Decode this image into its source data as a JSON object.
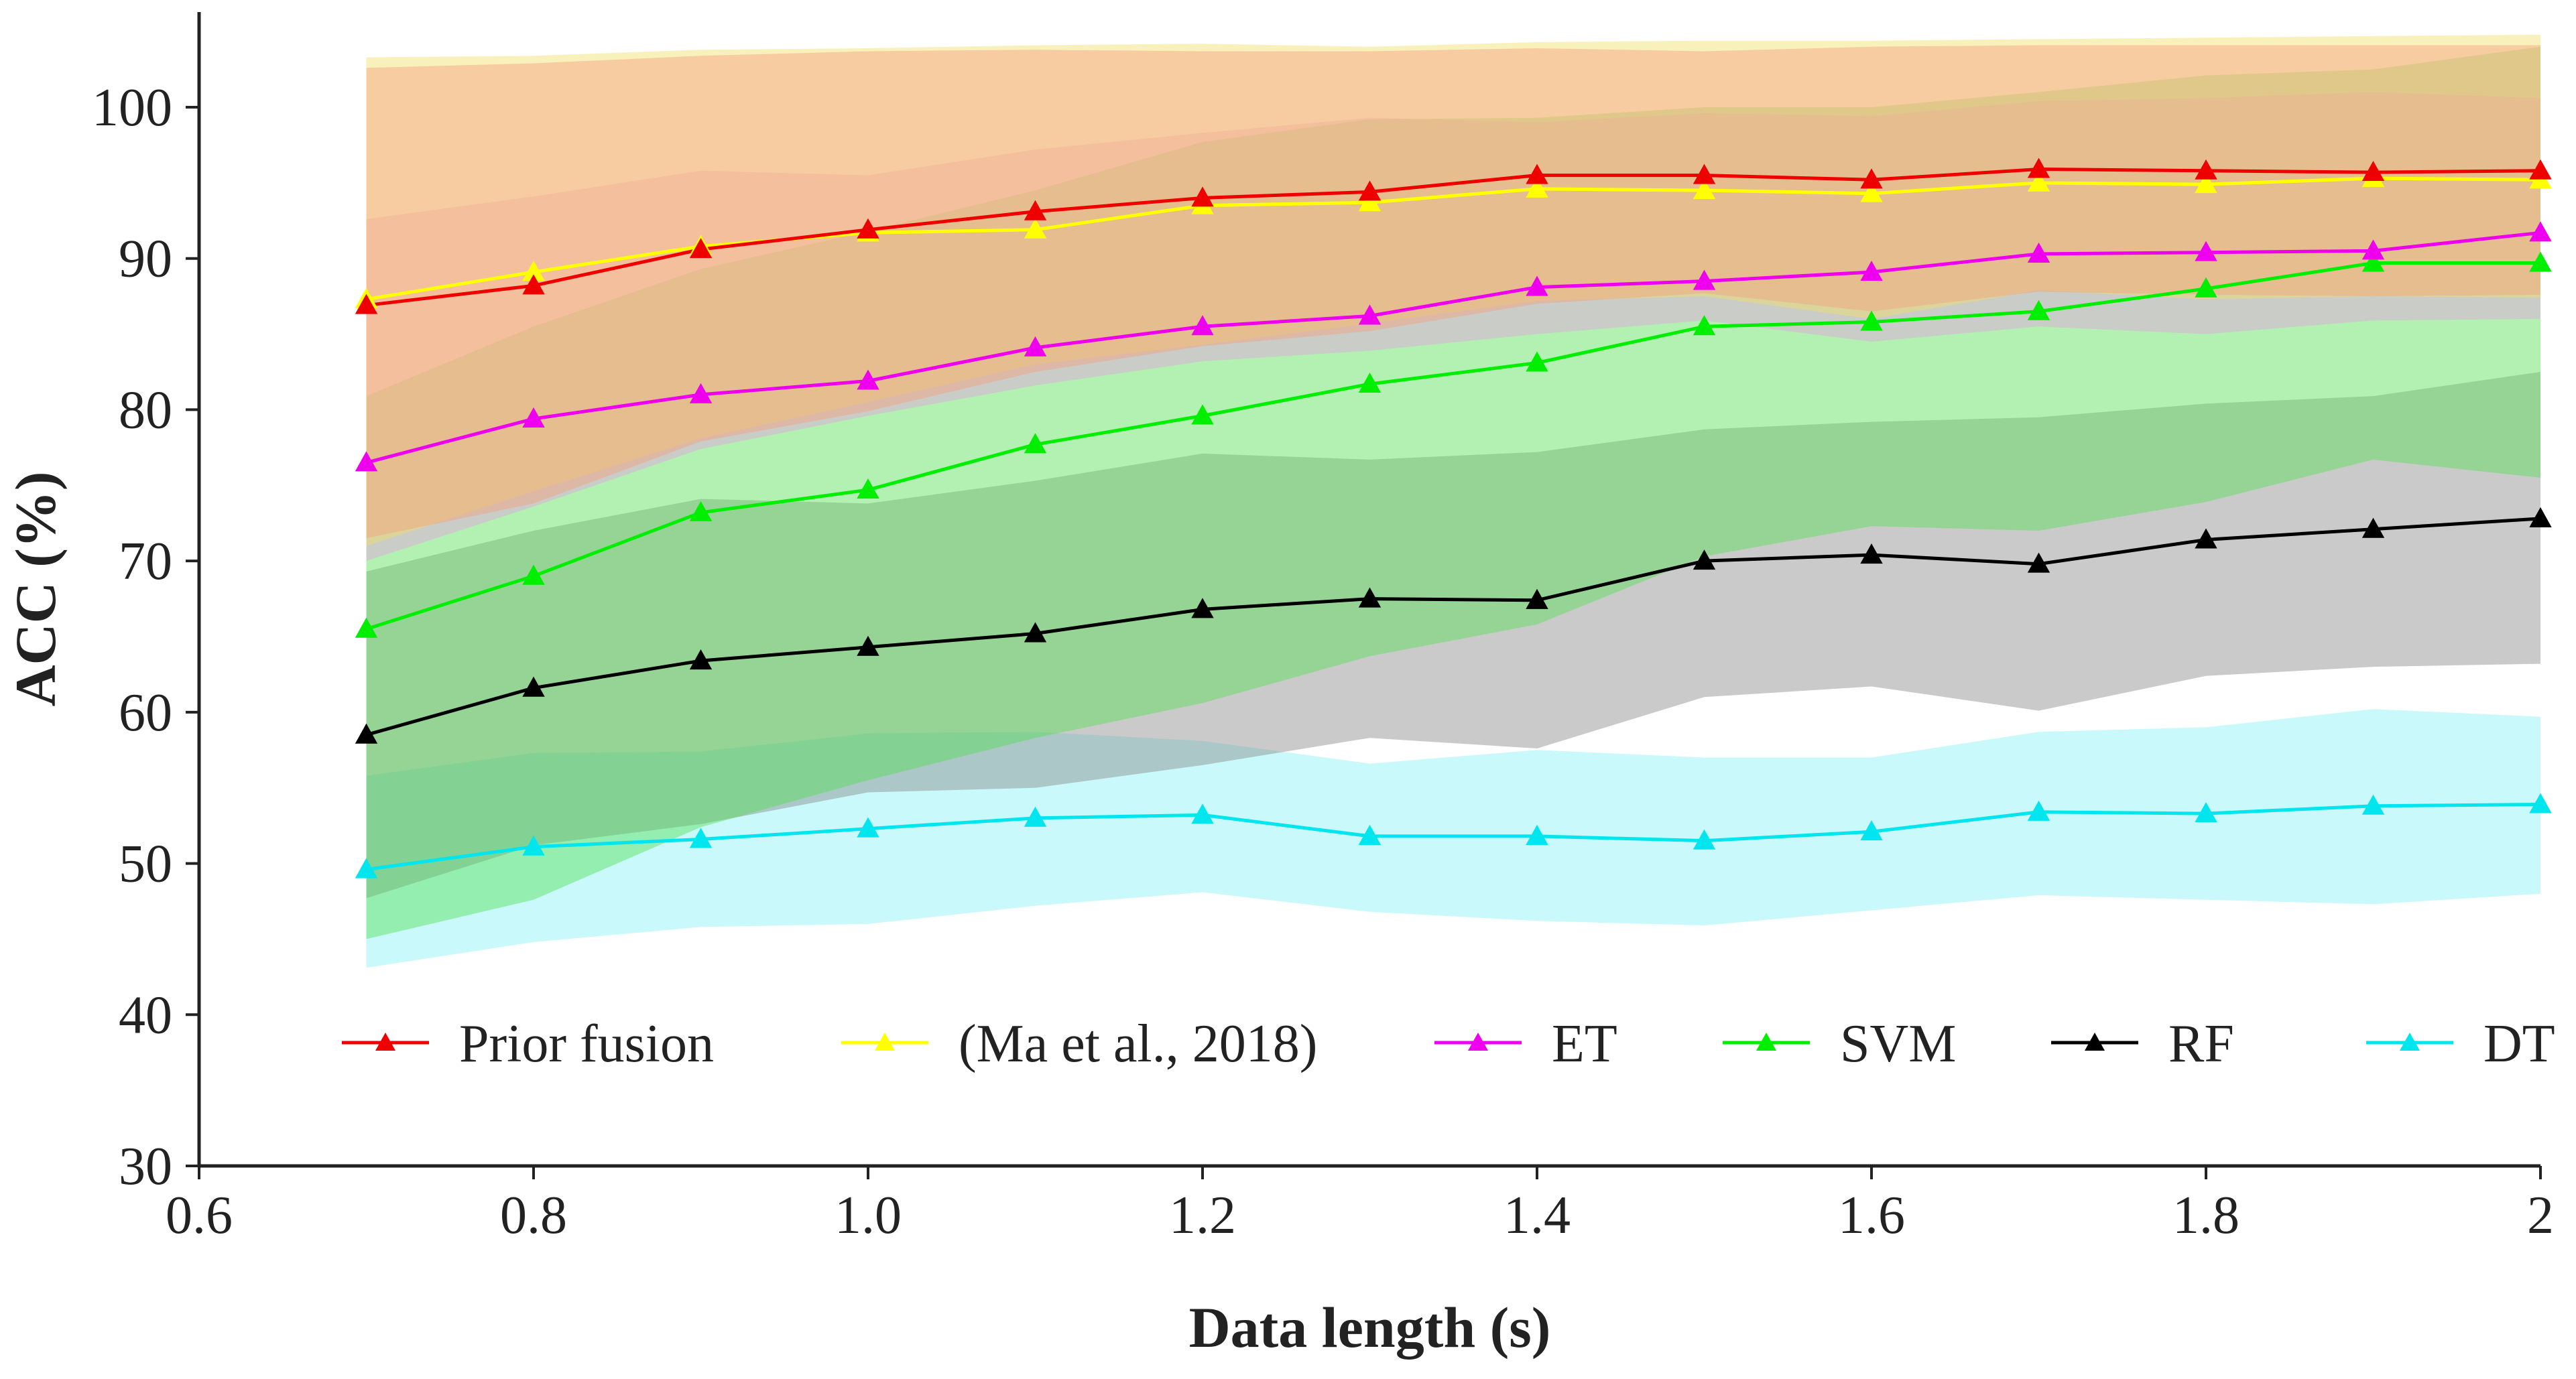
{
  "chart_data": {
    "type": "line",
    "title": "",
    "xlabel": "Data length (s)",
    "ylabel": "ACC (%)",
    "xlim": [
      0.6,
      2.0
    ],
    "ylim": [
      30,
      105
    ],
    "x_ticks": [
      0.6,
      0.8,
      1.0,
      1.2,
      1.4,
      1.6,
      1.8,
      2.0
    ],
    "x_tick_labels": [
      "0.6",
      "0.8",
      "1.0",
      "1.2",
      "1.4",
      "1.6",
      "1.8",
      "2"
    ],
    "y_ticks": [
      30,
      40,
      50,
      60,
      70,
      80,
      90,
      100
    ],
    "y_tick_labels": [
      "30",
      "40",
      "50",
      "60",
      "70",
      "80",
      "90",
      "100"
    ],
    "grid": false,
    "legend_position": "bottom",
    "x": [
      0.7,
      0.8,
      0.9,
      1.0,
      1.1,
      1.2,
      1.3,
      1.4,
      1.5,
      1.6,
      1.7,
      1.8,
      1.9,
      2.0
    ],
    "series": [
      {
        "name": "DT",
        "color": "#00e5ee",
        "band_color": "#88f2f4",
        "values": [
          49.6,
          51.1,
          51.6,
          52.3,
          53.0,
          53.2,
          51.8,
          51.8,
          51.5,
          52.1,
          53.4,
          53.3,
          53.8,
          53.9
        ],
        "upper": [
          55.8,
          57.3,
          57.4,
          58.6,
          58.7,
          58.1,
          56.6,
          57.5,
          57.0,
          57.0,
          58.7,
          59.0,
          60.2,
          59.7
        ],
        "lower": [
          43.1,
          44.8,
          45.8,
          46.0,
          47.2,
          48.1,
          46.8,
          46.2,
          45.9,
          46.9,
          47.9,
          47.6,
          47.3,
          48.0
        ]
      },
      {
        "name": "RF",
        "color": "#000000",
        "band_color": "#8a8a8a",
        "values": [
          58.5,
          61.6,
          63.4,
          64.3,
          65.2,
          66.8,
          67.5,
          67.4,
          70.0,
          70.4,
          69.8,
          71.4,
          72.1,
          72.8
        ],
        "upper": [
          69.3,
          72.0,
          74.1,
          73.8,
          75.3,
          77.1,
          76.7,
          77.2,
          78.7,
          79.2,
          79.5,
          80.4,
          80.9,
          82.5
        ],
        "lower": [
          47.7,
          51.2,
          52.6,
          54.7,
          55.0,
          56.5,
          58.3,
          57.6,
          61.0,
          61.7,
          60.1,
          62.4,
          63.0,
          63.2
        ]
      },
      {
        "name": "SVM",
        "color": "#00ee00",
        "band_color": "#55e055",
        "values": [
          65.5,
          69.0,
          73.2,
          74.7,
          77.7,
          79.6,
          81.7,
          83.1,
          85.5,
          85.8,
          86.5,
          88.0,
          89.7,
          89.7
        ],
        "upper": [
          80.9,
          85.5,
          89.3,
          91.8,
          94.5,
          97.7,
          99.2,
          99.3,
          100.0,
          100.0,
          101.0,
          102.1,
          102.5,
          104.0
        ],
        "lower": [
          45.0,
          47.6,
          52.4,
          55.5,
          58.3,
          60.6,
          63.7,
          65.8,
          70.3,
          72.3,
          72.0,
          73.9,
          76.7,
          75.5
        ]
      },
      {
        "name": "ET",
        "color": "#ee00ee",
        "band_color": "#e6a0e0",
        "values": [
          76.5,
          79.4,
          81.0,
          81.9,
          84.1,
          85.5,
          86.2,
          88.1,
          88.5,
          89.1,
          90.3,
          90.4,
          90.5,
          91.7
        ],
        "upper": [
          92.6,
          94.1,
          95.8,
          95.5,
          97.2,
          98.3,
          99.3,
          99.0,
          99.6,
          99.4,
          100.4,
          100.6,
          101.0,
          100.6
        ],
        "lower": [
          70.0,
          73.6,
          77.4,
          79.6,
          81.6,
          83.2,
          83.9,
          85.0,
          85.9,
          84.5,
          85.5,
          85.0,
          85.9,
          86.0
        ]
      },
      {
        "name": "(Ma et al., 2018)",
        "color": "#ffff00",
        "band_color": "#f0e068",
        "values": [
          87.3,
          89.1,
          90.8,
          91.7,
          91.9,
          93.5,
          93.7,
          94.6,
          94.5,
          94.3,
          95.0,
          94.9,
          95.3,
          95.2
        ],
        "upper": [
          103.3,
          103.4,
          103.8,
          103.9,
          104.1,
          104.2,
          104.0,
          104.3,
          104.4,
          104.4,
          104.5,
          104.6,
          104.7,
          104.8
        ],
        "lower": [
          71.0,
          74.6,
          78.1,
          80.5,
          83.0,
          84.3,
          85.7,
          87.2,
          87.5,
          86.0,
          87.9,
          87.3,
          87.5,
          87.4
        ]
      },
      {
        "name": "Prior fusion",
        "color": "#ee0000",
        "band_color": "#f4a080",
        "values": [
          86.9,
          88.2,
          90.6,
          91.9,
          93.1,
          94.0,
          94.4,
          95.5,
          95.5,
          95.2,
          95.9,
          95.8,
          95.7,
          95.8
        ],
        "upper": [
          102.6,
          102.9,
          103.4,
          103.7,
          103.8,
          103.7,
          103.7,
          103.9,
          103.7,
          104.0,
          104.1,
          104.1,
          104.1,
          104.1
        ],
        "lower": [
          71.5,
          73.8,
          77.9,
          79.9,
          82.5,
          84.2,
          85.2,
          87.0,
          87.7,
          86.5,
          87.8,
          87.6,
          87.5,
          87.6
        ]
      }
    ],
    "legend": [
      {
        "label": "Prior fusion",
        "color": "#ee0000"
      },
      {
        "label": "(Ma et al., 2018)",
        "color": "#ffff00"
      },
      {
        "label": "ET",
        "color": "#ee00ee"
      },
      {
        "label": "SVM",
        "color": "#00ee00"
      },
      {
        "label": "RF",
        "color": "#000000"
      },
      {
        "label": "DT",
        "color": "#00e5ee"
      }
    ]
  }
}
